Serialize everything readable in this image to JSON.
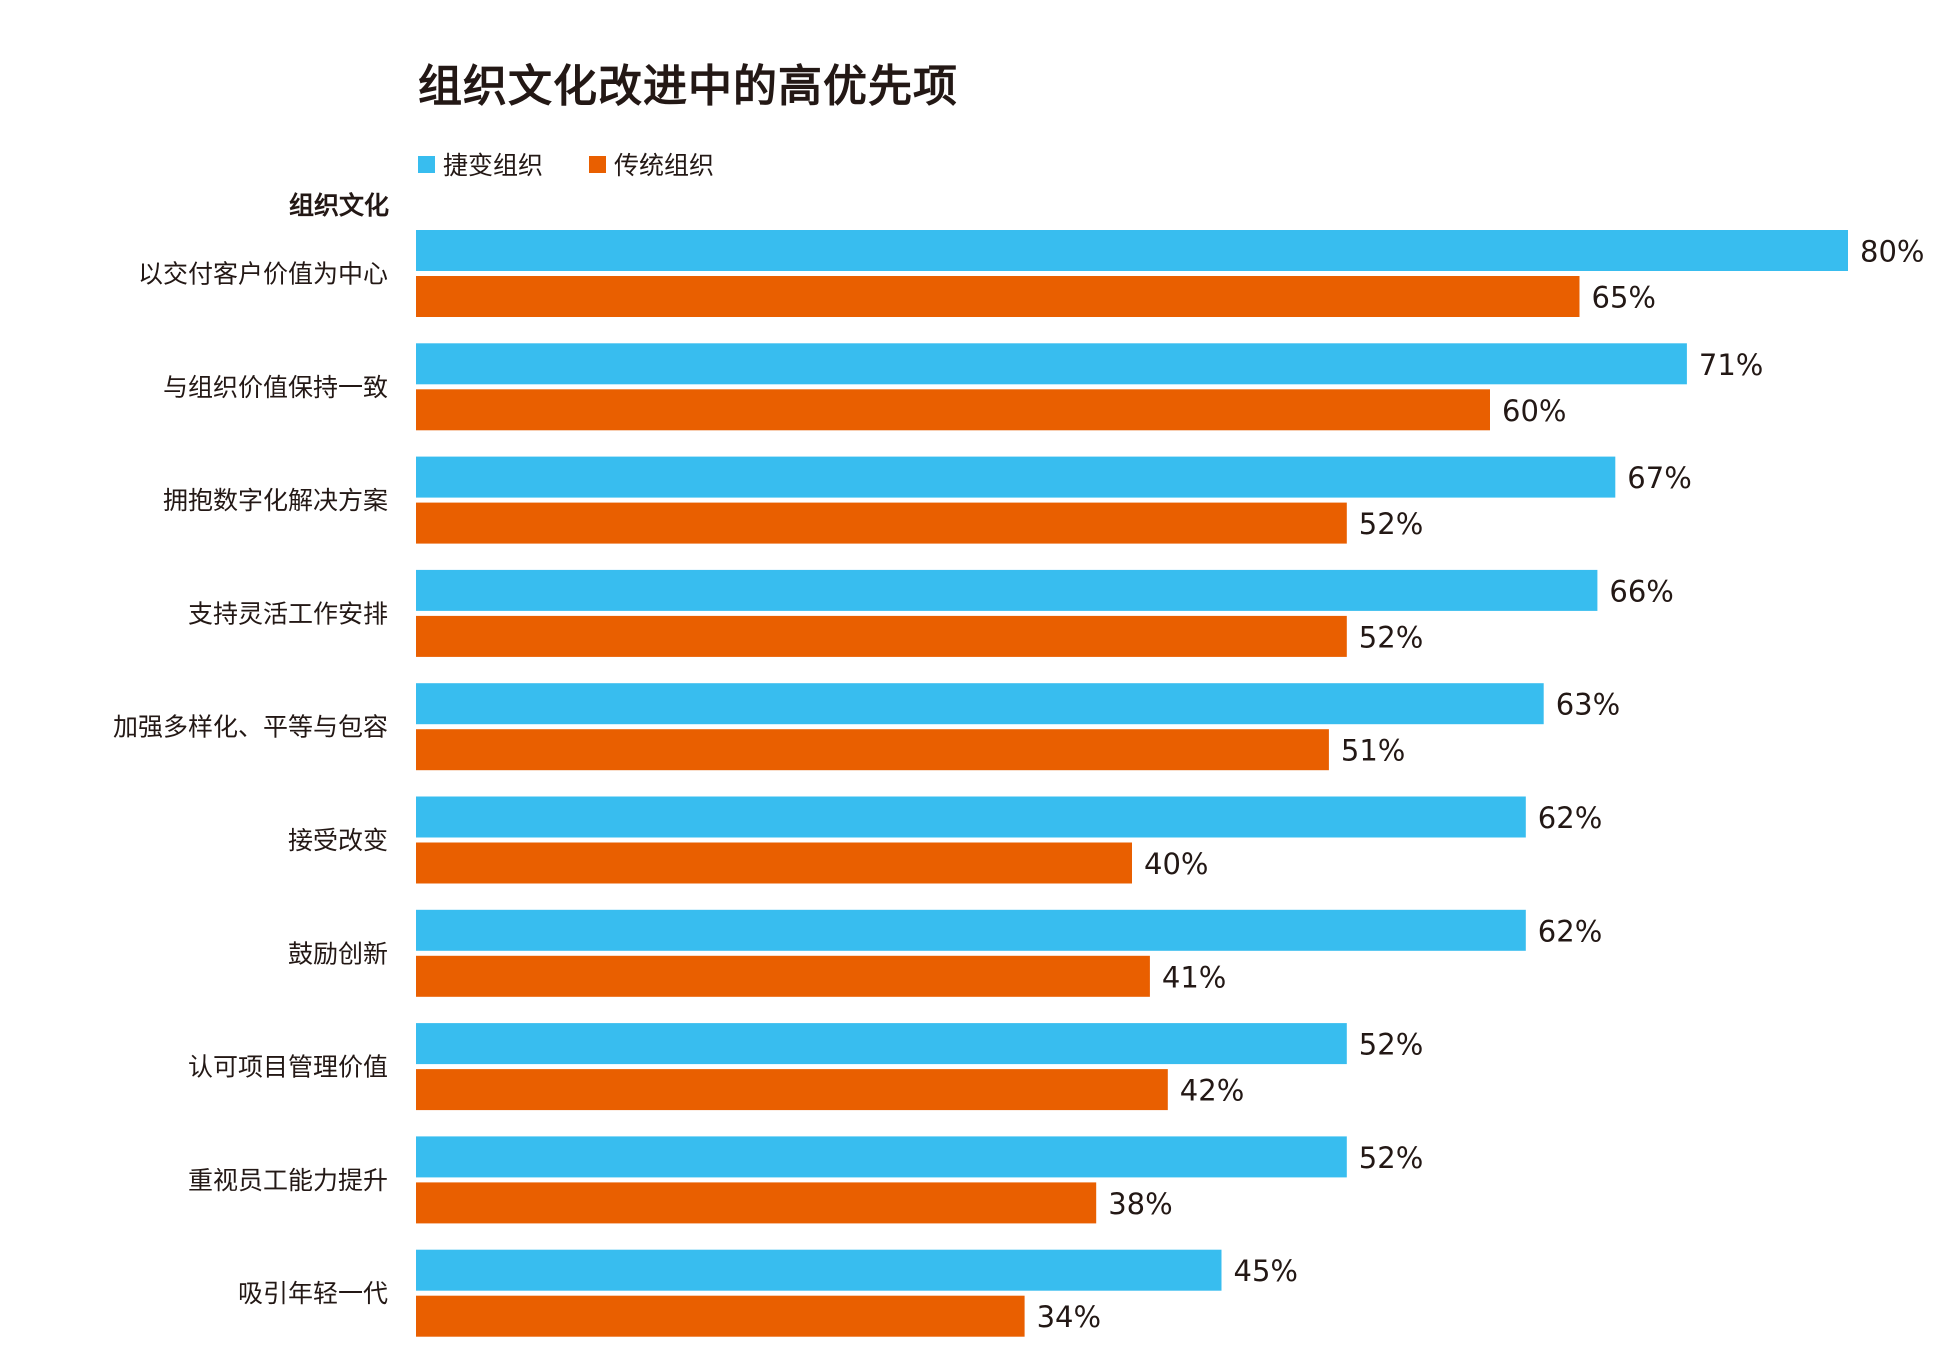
{
  "chart_data": {
    "type": "bar",
    "orientation": "horizontal",
    "title": "组织文化改进中的高优先项",
    "ylabel": "组织文化",
    "xlabel": "",
    "xlim": [
      0,
      80
    ],
    "grid": false,
    "legend_placement": "top-left",
    "categories": [
      "以交付客户价值为中心",
      "与组织价值保持一致",
      "拥抱数字化解决方案",
      "支持灵活工作安排",
      "加强多样化、平等与包容",
      "接受改变",
      "鼓励创新",
      "认可项目管理价值",
      "重视员工能力提升",
      "吸引年轻一代"
    ],
    "series": [
      {
        "name": "捷变组织",
        "color": "#38BDEF",
        "values": [
          80,
          71,
          67,
          66,
          63,
          62,
          62,
          52,
          52,
          45
        ]
      },
      {
        "name": "传统组织",
        "color": "#E95F00",
        "values": [
          65,
          60,
          52,
          52,
          51,
          40,
          41,
          42,
          38,
          34
        ]
      }
    ],
    "value_suffix": "%"
  }
}
